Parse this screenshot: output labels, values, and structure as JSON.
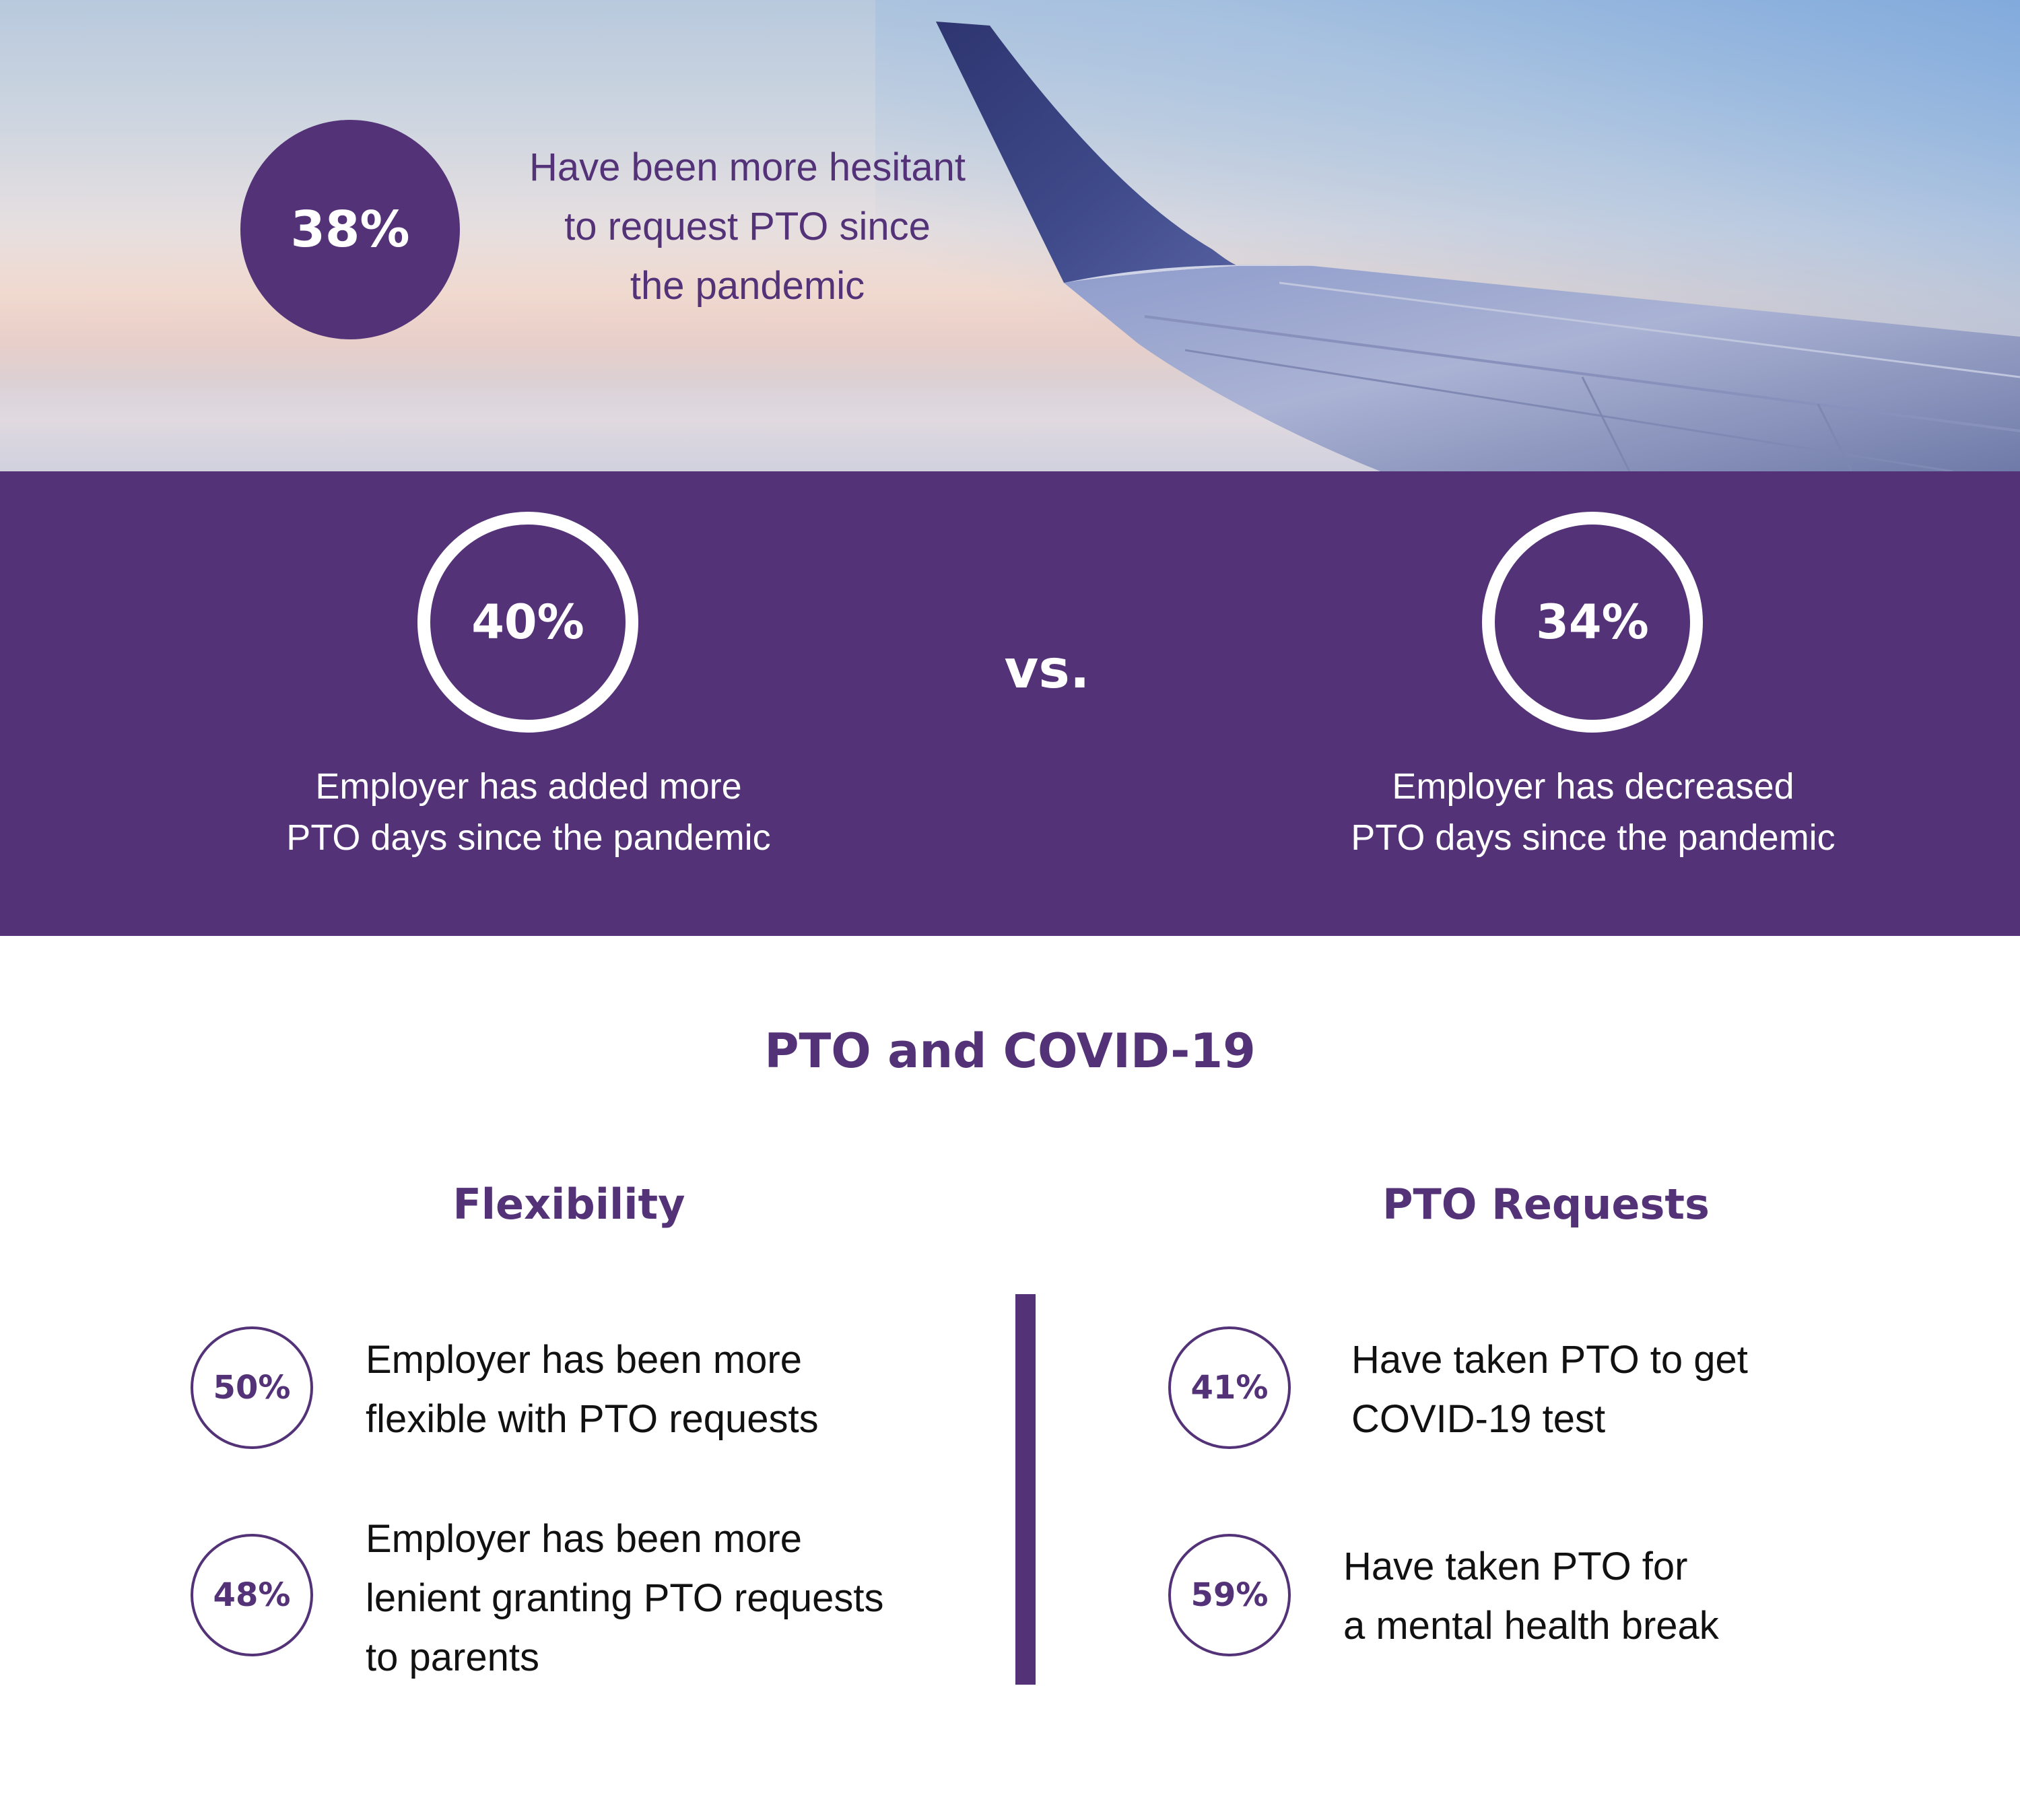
{
  "hero": {
    "stat_value": "38%",
    "stat_lines": [
      "Have been more hesitant",
      "to request PTO since",
      "the pandemic"
    ]
  },
  "comparison": {
    "left": {
      "value": "40%",
      "lines": [
        "Employer has added more",
        "PTO days since the pandemic"
      ]
    },
    "separator": "vs.",
    "right": {
      "value": "34%",
      "lines": [
        "Employer has decreased",
        "PTO days since the pandemic"
      ]
    }
  },
  "section": {
    "title": "PTO and COVID-19",
    "flexibility": {
      "heading": "Flexibility",
      "items": [
        {
          "value": "50%",
          "lines": [
            "Employer has been more",
            "flexible with PTO requests"
          ]
        },
        {
          "value": "48%",
          "lines": [
            "Employer has been more",
            "lenient granting PTO requests",
            "to parents"
          ]
        }
      ]
    },
    "requests": {
      "heading": "PTO Requests",
      "items": [
        {
          "value": "41%",
          "lines": [
            "Have taken PTO to get",
            "COVID-19 test"
          ]
        },
        {
          "value": "59%",
          "lines": [
            "Have taken PTO for",
            "a mental health break"
          ]
        }
      ]
    }
  },
  "colors": {
    "brand_purple": "#533278",
    "white": "#ffffff",
    "body_text": "#111111"
  }
}
